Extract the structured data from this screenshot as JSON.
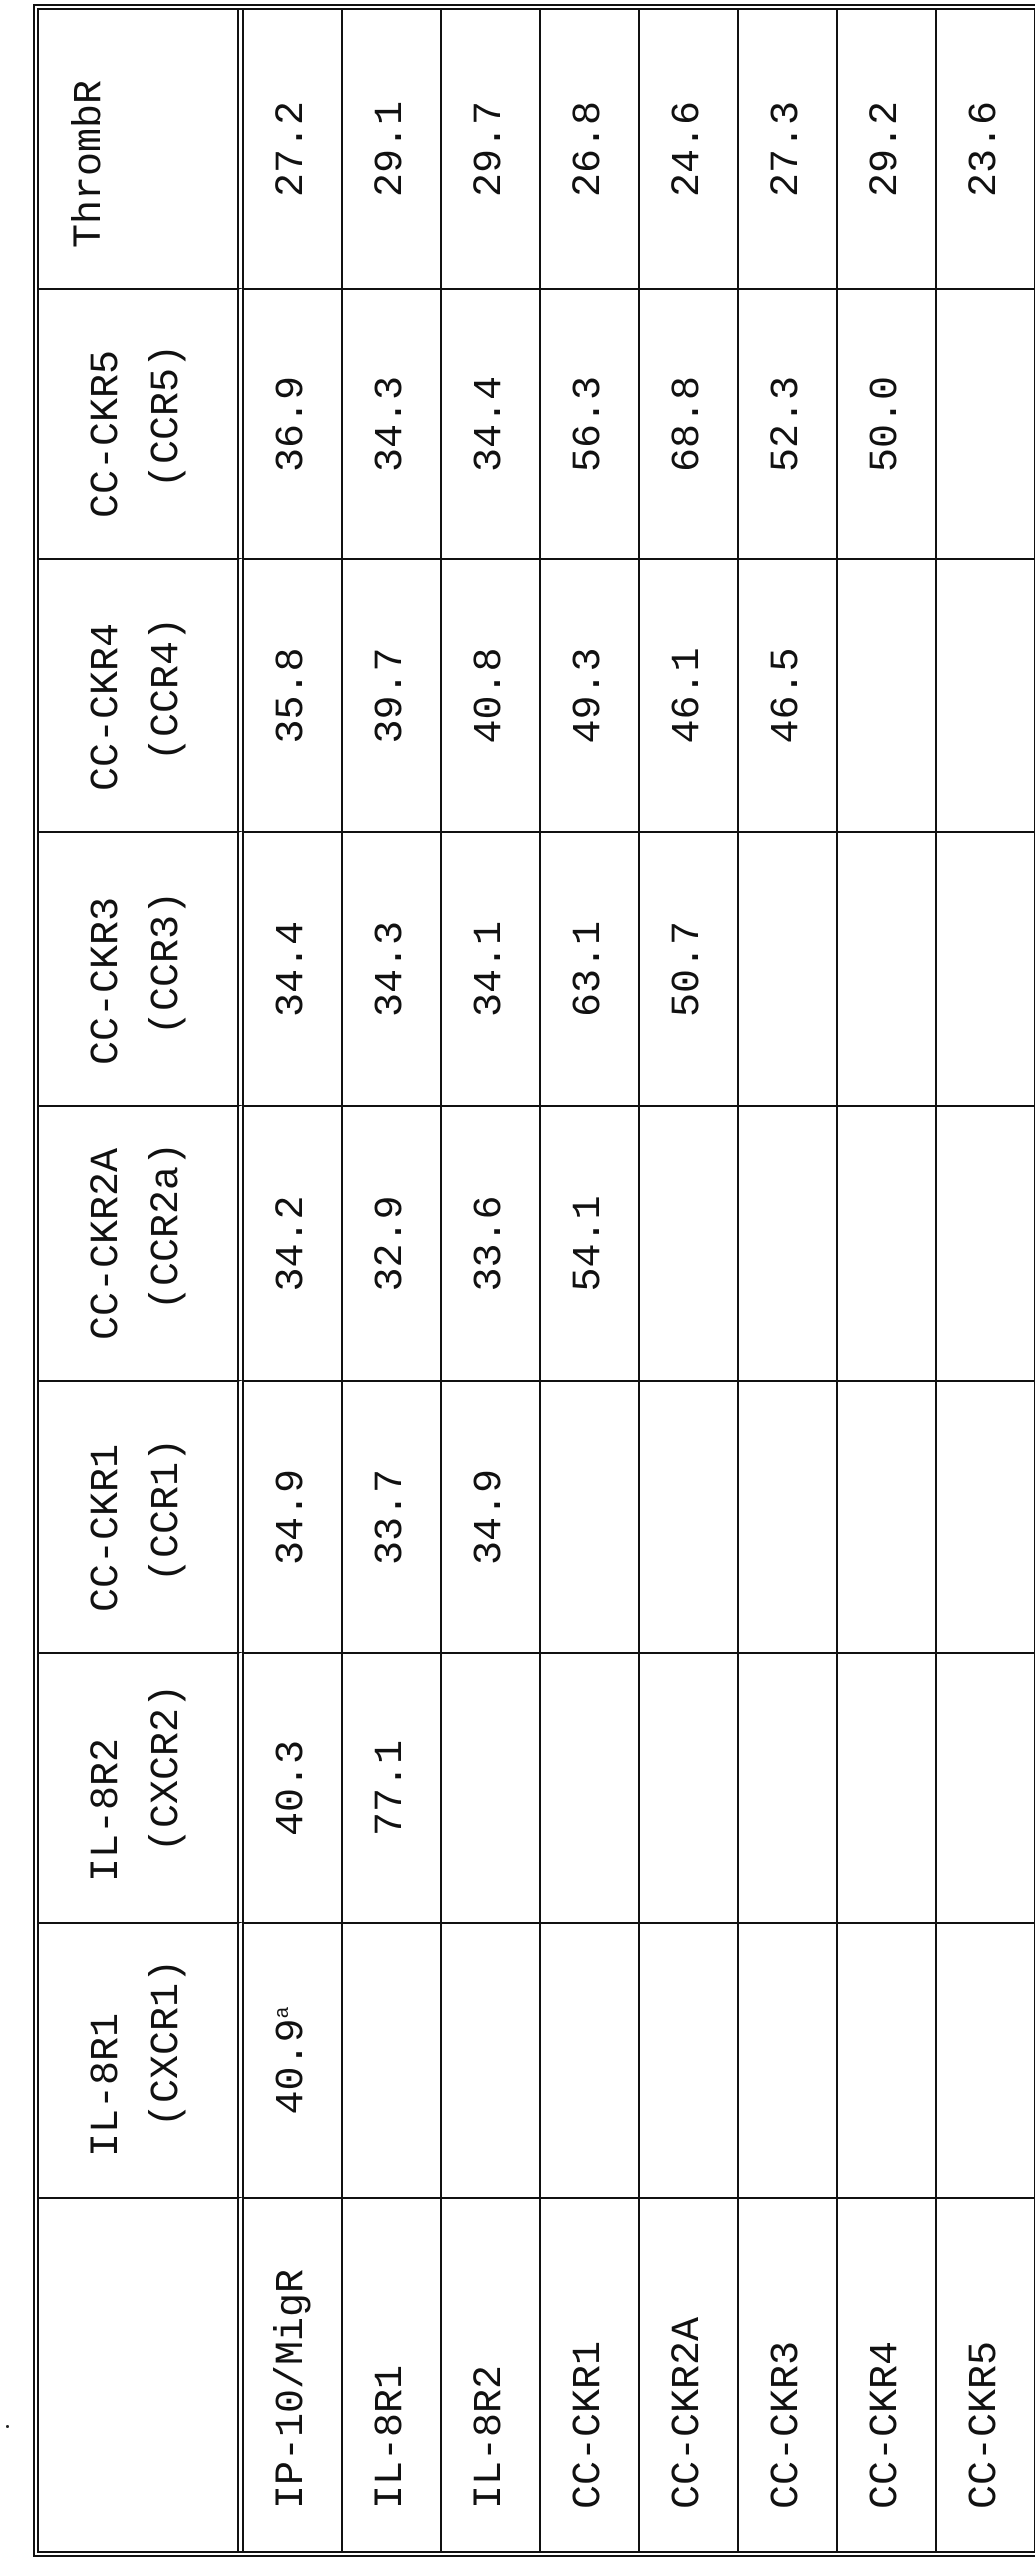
{
  "table": {
    "columns": [
      {
        "name": "",
        "alias": ""
      },
      {
        "name": "IL-8R1",
        "alias": "(CXCR1)"
      },
      {
        "name": "IL-8R2",
        "alias": "(CXCR2)"
      },
      {
        "name": "CC-CKR1",
        "alias": "(CCR1)"
      },
      {
        "name": "CC-CKR2A",
        "alias": "(CCR2a)"
      },
      {
        "name": "CC-CKR3",
        "alias": "(CCR3)"
      },
      {
        "name": "CC-CKR4",
        "alias": "(CCR4)"
      },
      {
        "name": "CC-CKR5",
        "alias": "(CCR5)"
      },
      {
        "name": "ThrombR",
        "alias": ""
      }
    ],
    "footnote_marker": "a",
    "rows": [
      {
        "label": "IP-10/MigR",
        "cells": [
          "40.9",
          "40.3",
          "34.9",
          "34.2",
          "34.4",
          "35.8",
          "36.9",
          "27.2"
        ]
      },
      {
        "label": "IL-8R1",
        "cells": [
          "",
          "77.1",
          "33.7",
          "32.9",
          "34.3",
          "39.7",
          "34.3",
          "29.1"
        ]
      },
      {
        "label": "IL-8R2",
        "cells": [
          "",
          "",
          "34.9",
          "33.6",
          "34.1",
          "40.8",
          "34.4",
          "29.7"
        ]
      },
      {
        "label": "CC-CKR1",
        "cells": [
          "",
          "",
          "",
          "54.1",
          "63.1",
          "49.3",
          "56.3",
          "26.8"
        ]
      },
      {
        "label": "CC-CKR2A",
        "cells": [
          "",
          "",
          "",
          "",
          "50.7",
          "46.1",
          "68.8",
          "24.6"
        ]
      },
      {
        "label": "CC-CKR3",
        "cells": [
          "",
          "",
          "",
          "",
          "",
          "46.5",
          "52.3",
          "27.3"
        ]
      },
      {
        "label": "CC-CKR4",
        "cells": [
          "",
          "",
          "",
          "",
          "",
          "",
          "50.0",
          "29.2"
        ]
      },
      {
        "label": "CC-CKR5",
        "cells": [
          "",
          "",
          "",
          "",
          "",
          "",
          "",
          "23.6"
        ]
      }
    ]
  }
}
